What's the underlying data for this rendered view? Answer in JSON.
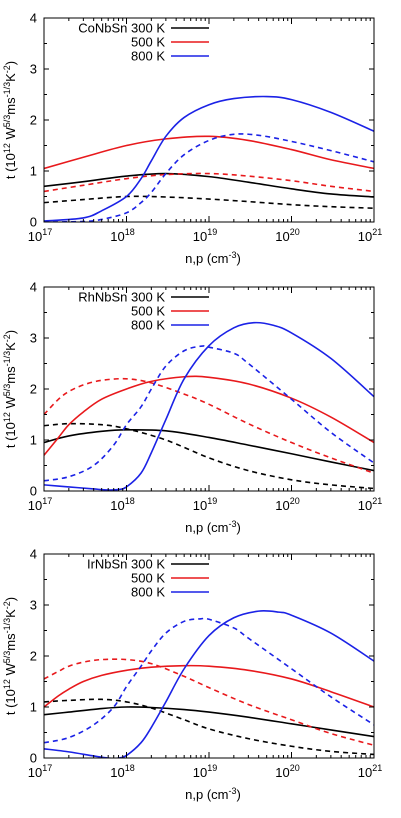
{
  "colors": {
    "300 K": "#000000",
    "500 K": "#e8191c",
    "800 K": "#1b22e6"
  },
  "chart_data": [
    {
      "type": "line",
      "material": "CoNbSn",
      "xlabel": "n,p (cm",
      "xlabel_sup": "-3",
      "xlabel_end": ")",
      "ylabel": "t (10",
      "ylabel_parts": [
        "12",
        " W",
        "5/3",
        "ms",
        "-1/3",
        "K",
        "-2",
        ")"
      ],
      "x_scale": "log",
      "xlim": [
        1e+17,
        1e+21
      ],
      "ylim": [
        0,
        4
      ],
      "yticks": [
        "0",
        "1",
        "2",
        "3",
        "4"
      ],
      "xticks": [
        {
          "base": "10",
          "exp": "17"
        },
        {
          "base": "10",
          "exp": "18"
        },
        {
          "base": "10",
          "exp": "19"
        },
        {
          "base": "10",
          "exp": "20"
        },
        {
          "base": "10",
          "exp": "21"
        }
      ],
      "legend": [
        "CoNbSn 300 K",
        "500 K",
        "800 K"
      ],
      "legend_position": "top-left",
      "line_styles": "solid and dashed (two carrier types, unlabeled)",
      "series": [
        {
          "name": "300 K",
          "style": "solid",
          "x": [
            1e+17,
            3e+17,
            1e+18,
            3e+18,
            1e+19,
            3e+19,
            1e+20,
            3e+20,
            1e+21
          ],
          "y": [
            0.7,
            0.79,
            0.9,
            0.95,
            0.89,
            0.78,
            0.65,
            0.55,
            0.49
          ]
        },
        {
          "name": "300 K",
          "style": "dashed",
          "x": [
            1e+17,
            3e+17,
            1e+18,
            3e+18,
            1e+19,
            3e+19,
            1e+20,
            3e+20,
            1e+21
          ],
          "y": [
            0.38,
            0.44,
            0.5,
            0.49,
            0.45,
            0.4,
            0.34,
            0.3,
            0.27
          ]
        },
        {
          "name": "500 K",
          "style": "solid",
          "x": [
            1e+17,
            3e+17,
            1e+18,
            3e+18,
            1e+19,
            3e+19,
            1e+20,
            3e+20,
            1e+21
          ],
          "y": [
            1.05,
            1.27,
            1.5,
            1.63,
            1.68,
            1.6,
            1.42,
            1.22,
            1.05
          ]
        },
        {
          "name": "500 K",
          "style": "dashed",
          "x": [
            1e+17,
            3e+17,
            1e+18,
            3e+18,
            1e+19,
            3e+19,
            1e+20,
            3e+20,
            1e+21
          ],
          "y": [
            0.6,
            0.72,
            0.85,
            0.93,
            0.95,
            0.9,
            0.81,
            0.7,
            0.6
          ]
        },
        {
          "name": "800 K",
          "style": "solid",
          "x": [
            1e+17,
            3e+17,
            5e+17,
            1e+18,
            1.5e+18,
            2e+18,
            3e+18,
            5e+18,
            1e+19,
            2e+19,
            5e+19,
            1e+20,
            3e+20,
            1e+21
          ],
          "y": [
            0.02,
            0.08,
            0.22,
            0.5,
            0.85,
            1.2,
            1.68,
            2.05,
            2.3,
            2.42,
            2.46,
            2.4,
            2.15,
            1.78
          ]
        },
        {
          "name": "800 K",
          "style": "dashed",
          "x": [
            1e+17,
            3e+17,
            5e+17,
            1e+18,
            1.5e+18,
            2e+18,
            3e+18,
            5e+18,
            1e+19,
            2e+19,
            4e+19,
            1e+20,
            3e+20,
            1e+21
          ],
          "y": [
            0,
            0.01,
            0.05,
            0.18,
            0.38,
            0.58,
            0.95,
            1.32,
            1.6,
            1.72,
            1.7,
            1.58,
            1.4,
            1.18
          ]
        }
      ]
    },
    {
      "type": "line",
      "material": "RhNbSn",
      "xlabel": "n,p (cm",
      "xlabel_sup": "-3",
      "xlabel_end": ")",
      "ylabel": "t (10",
      "ylabel_parts": [
        "12",
        " W",
        "5/3",
        "ms",
        "-1/3",
        "K",
        "-2",
        ")"
      ],
      "x_scale": "log",
      "xlim": [
        1e+17,
        1e+21
      ],
      "ylim": [
        0,
        4
      ],
      "yticks": [
        "0",
        "1",
        "2",
        "3",
        "4"
      ],
      "xticks": [
        {
          "base": "10",
          "exp": "17"
        },
        {
          "base": "10",
          "exp": "18"
        },
        {
          "base": "10",
          "exp": "19"
        },
        {
          "base": "10",
          "exp": "20"
        },
        {
          "base": "10",
          "exp": "21"
        }
      ],
      "legend": [
        "RhNbSn 300 K",
        "500 K",
        "800 K"
      ],
      "legend_position": "top-left",
      "line_styles": "solid and dashed (two carrier types, unlabeled)",
      "series": [
        {
          "name": "300 K",
          "style": "solid",
          "x": [
            1e+17,
            2e+17,
            5e+17,
            1e+18,
            3e+18,
            1e+19,
            3e+19,
            1e+20,
            3e+20,
            1e+21
          ],
          "y": [
            0.95,
            1.08,
            1.17,
            1.2,
            1.18,
            1.05,
            0.9,
            0.73,
            0.57,
            0.4
          ]
        },
        {
          "name": "300 K",
          "style": "dashed",
          "x": [
            1e+17,
            2e+17,
            5e+17,
            1e+18,
            3e+18,
            1e+19,
            3e+19,
            1e+20,
            3e+20,
            1e+21
          ],
          "y": [
            1.28,
            1.32,
            1.3,
            1.22,
            1.0,
            0.65,
            0.4,
            0.22,
            0.12,
            0.05
          ]
        },
        {
          "name": "500 K",
          "style": "solid",
          "x": [
            1e+17,
            1.5e+17,
            2e+17,
            3e+17,
            5e+17,
            1e+18,
            2e+18,
            5e+18,
            1e+19,
            3e+19,
            1e+20,
            3e+20,
            1e+21
          ],
          "y": [
            0.7,
            1.05,
            1.3,
            1.55,
            1.8,
            2.0,
            2.15,
            2.24,
            2.23,
            2.1,
            1.82,
            1.45,
            0.95
          ]
        },
        {
          "name": "500 K",
          "style": "dashed",
          "x": [
            1e+17,
            1.5e+17,
            2e+17,
            3e+17,
            5e+17,
            1e+18,
            2e+18,
            5e+18,
            1e+19,
            3e+19,
            1e+20,
            3e+20,
            1e+21
          ],
          "y": [
            1.5,
            1.8,
            1.95,
            2.08,
            2.17,
            2.2,
            2.12,
            1.9,
            1.7,
            1.32,
            0.95,
            0.65,
            0.35
          ]
        },
        {
          "name": "800 K",
          "style": "solid",
          "x": [
            1e+17,
            2e+17,
            4e+17,
            6e+17,
            8e+17,
            1e+18,
            1.5e+18,
            2e+18,
            3e+18,
            5e+18,
            1e+19,
            2e+19,
            3.5e+19,
            6e+19,
            1e+20,
            3e+20,
            1e+21
          ],
          "y": [
            0.12,
            0.08,
            0.04,
            0.02,
            0.03,
            0.08,
            0.35,
            0.75,
            1.4,
            2.2,
            2.85,
            3.2,
            3.3,
            3.25,
            3.1,
            2.6,
            1.85
          ]
        },
        {
          "name": "800 K",
          "style": "dashed",
          "x": [
            1e+17,
            2e+17,
            4e+17,
            7e+17,
            1e+18,
            1.5e+18,
            2e+18,
            3e+18,
            5e+18,
            8e+18,
            1e+19,
            2e+19,
            3e+19,
            1e+20,
            3e+20,
            1e+21
          ],
          "y": [
            0.2,
            0.28,
            0.5,
            0.9,
            1.3,
            1.65,
            2.0,
            2.45,
            2.75,
            2.84,
            2.82,
            2.7,
            2.5,
            1.8,
            1.15,
            0.55
          ]
        }
      ]
    },
    {
      "type": "line",
      "material": "IrNbSn",
      "xlabel": "n,p (cm",
      "xlabel_sup": "-3",
      "xlabel_end": ")",
      "ylabel": "t (10",
      "ylabel_parts": [
        "12",
        " W",
        "5/3",
        "ms",
        "-1/3",
        "K",
        "-2",
        ")"
      ],
      "x_scale": "log",
      "xlim": [
        1e+17,
        1e+21
      ],
      "ylim": [
        0,
        4
      ],
      "yticks": [
        "0",
        "1",
        "2",
        "3",
        "4"
      ],
      "xticks": [
        {
          "base": "10",
          "exp": "17"
        },
        {
          "base": "10",
          "exp": "18"
        },
        {
          "base": "10",
          "exp": "19"
        },
        {
          "base": "10",
          "exp": "20"
        },
        {
          "base": "10",
          "exp": "21"
        }
      ],
      "legend": [
        "IrNbSn 300 K",
        "500 K",
        "800 K"
      ],
      "legend_position": "top-left",
      "line_styles": "solid and dashed (two carrier types, unlabeled)",
      "series": [
        {
          "name": "300 K",
          "style": "solid",
          "x": [
            1e+17,
            2e+17,
            5e+17,
            1e+18,
            2e+18,
            5e+18,
            1e+19,
            3e+19,
            1e+20,
            3e+20,
            1e+21
          ],
          "y": [
            0.85,
            0.9,
            0.97,
            1.0,
            0.99,
            0.95,
            0.9,
            0.8,
            0.67,
            0.55,
            0.42
          ]
        },
        {
          "name": "300 K",
          "style": "dashed",
          "x": [
            1e+17,
            2e+17,
            5e+17,
            1e+18,
            2e+18,
            5e+18,
            1e+19,
            3e+19,
            1e+20,
            3e+20,
            1e+21
          ],
          "y": [
            1.1,
            1.13,
            1.15,
            1.1,
            0.98,
            0.75,
            0.57,
            0.38,
            0.23,
            0.13,
            0.07
          ]
        },
        {
          "name": "500 K",
          "style": "solid",
          "x": [
            1e+17,
            1.5e+17,
            2e+17,
            3e+17,
            5e+17,
            1e+18,
            2e+18,
            5e+18,
            1e+19,
            3e+19,
            1e+20,
            3e+20,
            1e+21
          ],
          "y": [
            1.0,
            1.22,
            1.35,
            1.5,
            1.62,
            1.72,
            1.78,
            1.81,
            1.8,
            1.72,
            1.55,
            1.3,
            1.0
          ]
        },
        {
          "name": "500 K",
          "style": "dashed",
          "x": [
            1e+17,
            1.5e+17,
            2e+17,
            3e+17,
            5e+17,
            1e+18,
            2e+18,
            5e+18,
            1e+19,
            3e+19,
            1e+20,
            3e+20,
            1e+21
          ],
          "y": [
            1.55,
            1.7,
            1.8,
            1.88,
            1.93,
            1.93,
            1.85,
            1.6,
            1.38,
            1.05,
            0.75,
            0.48,
            0.25
          ]
        },
        {
          "name": "800 K",
          "style": "solid",
          "x": [
            1e+17,
            2e+17,
            4e+17,
            6e+17,
            8e+17,
            1e+18,
            1.5e+18,
            2e+18,
            3e+18,
            5e+18,
            1e+19,
            2e+19,
            4e+19,
            7e+19,
            1e+20,
            3e+20,
            1e+21
          ],
          "y": [
            0.18,
            0.12,
            0.04,
            0.0,
            0.0,
            0.05,
            0.3,
            0.6,
            1.1,
            1.75,
            2.4,
            2.75,
            2.88,
            2.86,
            2.8,
            2.45,
            1.9
          ]
        },
        {
          "name": "800 K",
          "style": "dashed",
          "x": [
            1e+17,
            2e+17,
            4e+17,
            7e+17,
            1e+18,
            1.5e+18,
            2e+18,
            3e+18,
            5e+18,
            8e+18,
            1e+19,
            2e+19,
            3e+19,
            1e+20,
            3e+20,
            1e+21
          ],
          "y": [
            0.3,
            0.4,
            0.65,
            1.0,
            1.4,
            1.8,
            2.1,
            2.45,
            2.68,
            2.73,
            2.72,
            2.55,
            2.35,
            1.75,
            1.2,
            0.65
          ]
        }
      ]
    }
  ]
}
